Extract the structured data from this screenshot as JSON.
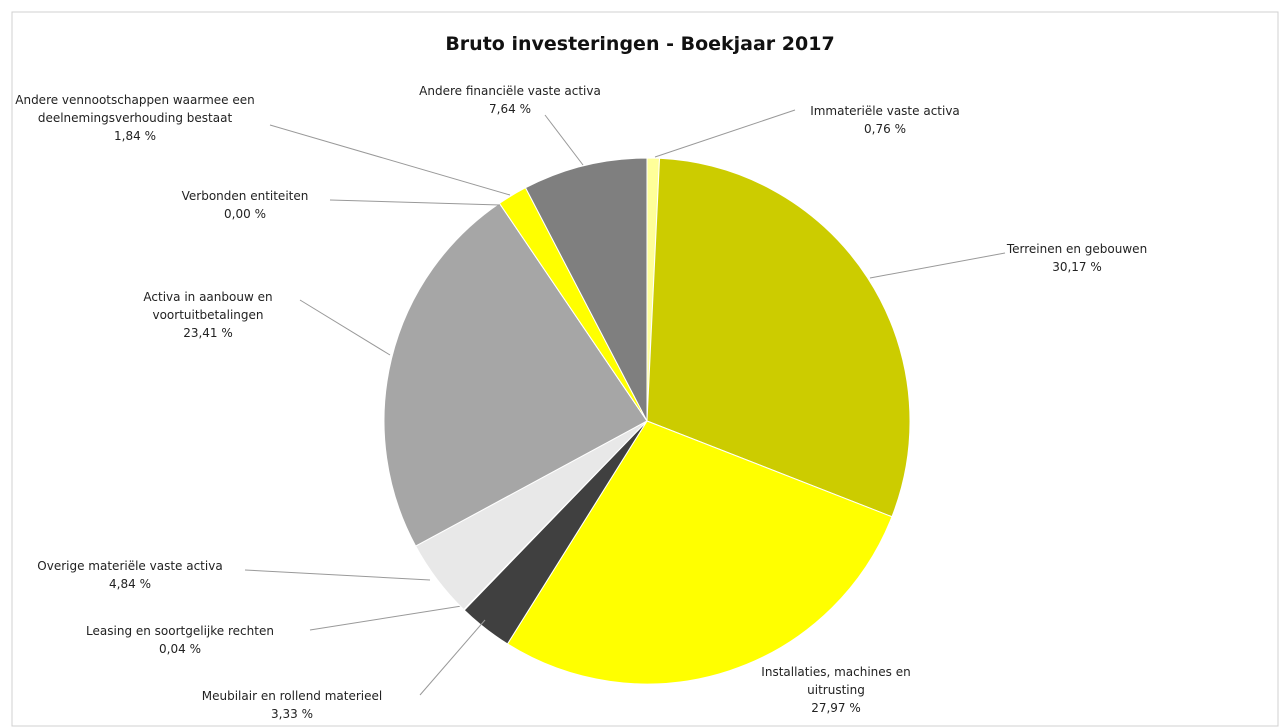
{
  "chart_data": {
    "type": "pie",
    "title": "Bruto investeringen - Boekjaar 2017",
    "categories": [
      "Immateriële vaste activa",
      "Terreinen en gebouwen",
      "Installaties, machines en uitrusting",
      "Meubilair en rollend materieel",
      "Leasing en soortgelijke rechten",
      "Overige materiële vaste activa",
      "Activa in aanbouw en voortuitbetalingen",
      "Verbonden entiteiten",
      "Andere vennootschappen waarmee een deelnemingsverhouding bestaat",
      "Andere financiële vaste activa"
    ],
    "values": [
      0.76,
      30.17,
      27.97,
      3.33,
      0.04,
      4.84,
      23.41,
      0.0,
      1.84,
      7.64
    ],
    "value_labels": [
      "0,76 %",
      "30,17 %",
      "27,97 %",
      "3,33 %",
      "0,04 %",
      "4,84 %",
      "23,41 %",
      "0,00 %",
      "1,84 %",
      "7,64 %"
    ],
    "colors": [
      "#ffff99",
      "#cccc00",
      "#ffff00",
      "#404040",
      "#222222",
      "#e8e8e8",
      "#a6a6a6",
      "#cccccc",
      "#ffff00",
      "#7f7f7f"
    ]
  }
}
